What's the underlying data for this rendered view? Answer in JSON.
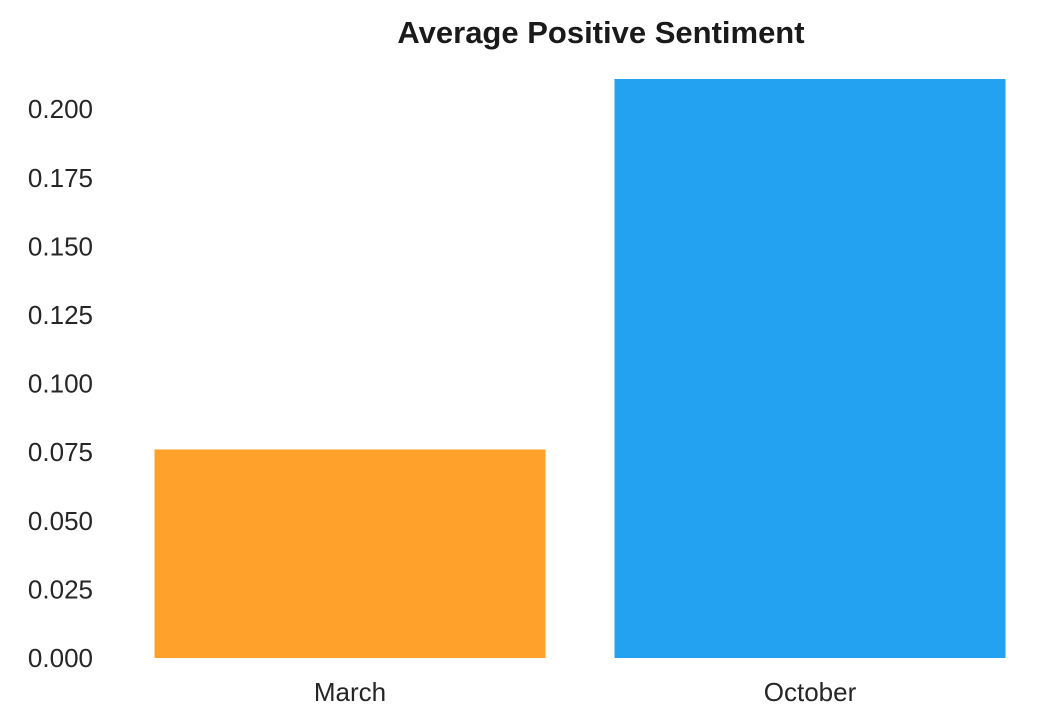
{
  "chart_data": {
    "type": "bar",
    "title": "Average Positive Sentiment",
    "xlabel": "",
    "ylabel": "",
    "categories": [
      "March",
      "October"
    ],
    "values": [
      0.076,
      0.211
    ],
    "colors": [
      "#ffa12b",
      "#22a2f1"
    ],
    "ylim": [
      0,
      0.211
    ],
    "yticks": [
      "0.000",
      "0.025",
      "0.050",
      "0.075",
      "0.100",
      "0.125",
      "0.150",
      "0.175",
      "0.200"
    ],
    "grid": false,
    "legend": "none"
  }
}
